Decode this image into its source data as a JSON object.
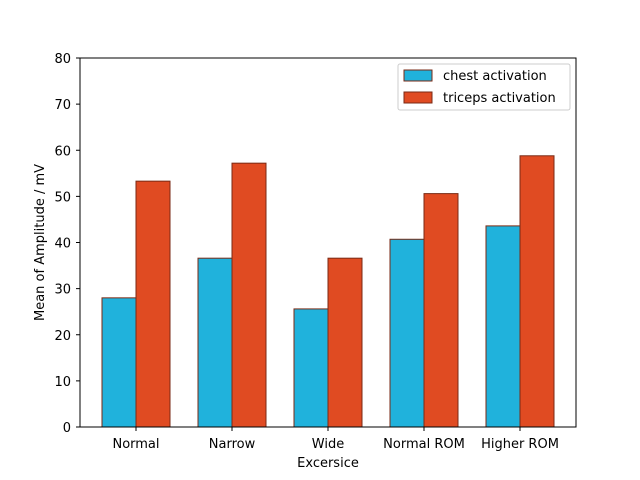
{
  "chart_data": {
    "type": "bar",
    "title": "",
    "xlabel": "Excersice",
    "ylabel": "Mean of Amplitude / mV",
    "categories": [
      "Normal",
      "Narrow",
      "Wide",
      "Normal ROM",
      "Higher ROM"
    ],
    "series": [
      {
        "name": "chest activation",
        "values": [
          28.0,
          36.6,
          25.6,
          40.7,
          43.6
        ],
        "color": "#20b2dc"
      },
      {
        "name": "triceps activation",
        "values": [
          53.3,
          57.2,
          36.6,
          50.6,
          58.8
        ],
        "color": "#e04b22"
      }
    ],
    "ylim": [
      0,
      80
    ],
    "yticks": [
      0,
      10,
      20,
      30,
      40,
      50,
      60,
      70,
      80
    ],
    "grid": false,
    "legend_position": "top-right",
    "bar_edge_color": "#7a2a14"
  }
}
